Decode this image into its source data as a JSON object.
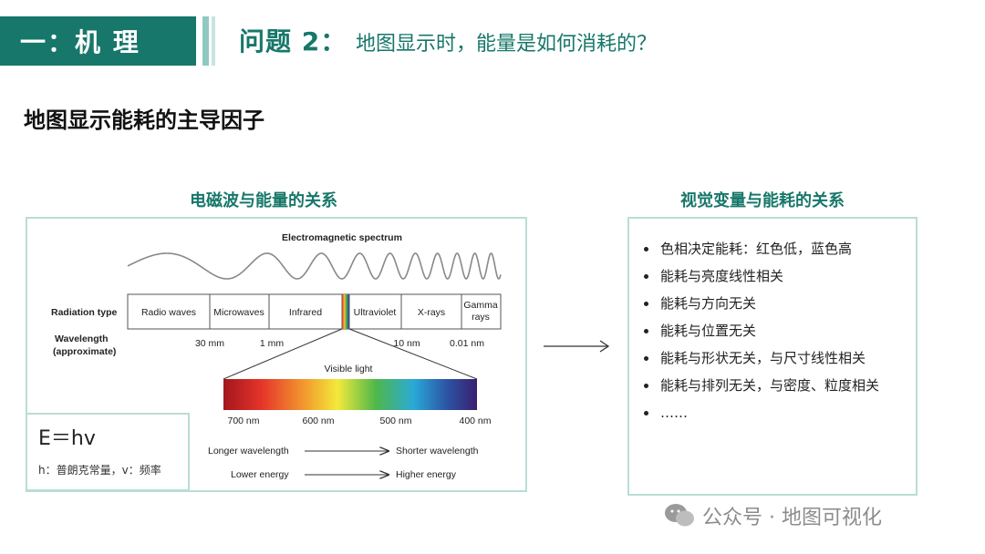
{
  "header": {
    "section_label": "一：机 理",
    "question_number": "问题 2：",
    "question_text": "地图显示时，能量是如何消耗的？"
  },
  "subtitle": "地图显示能耗的主导因子",
  "left_panel": {
    "title": "电磁波与能量的关系",
    "figure": {
      "title": "Electromagnetic spectrum",
      "radiation_type_label": "Radiation type",
      "wavelength_label_line1": "Wavelength",
      "wavelength_label_line2": "(approximate)",
      "bands": [
        "Radio waves",
        "Microwaves",
        "Infrared",
        "Ultraviolet",
        "X-rays",
        "Gamma rays"
      ],
      "wavelength_ticks": [
        "30 mm",
        "1 mm",
        "10 nm",
        "0.01 nm"
      ],
      "visible_light_label": "Visible light",
      "visible_ticks": [
        "700 nm",
        "600 nm",
        "500 nm",
        "400 nm"
      ],
      "arrow_rows": [
        {
          "left": "Longer wavelength",
          "right": "Shorter wavelength"
        },
        {
          "left": "Lower energy",
          "right": "Higher energy"
        }
      ]
    },
    "formula": "E＝hv",
    "formula_note": "h：普朗克常量，v：频率"
  },
  "right_panel": {
    "title": "视觉变量与能耗的关系",
    "items": [
      "色相决定能耗：红色低，蓝色高",
      "能耗与亮度线性相关",
      "能耗与方向无关",
      "能耗与位置无关",
      "能耗与形状无关，与尺寸线性相关",
      "能耗与排列无关，与密度、粒度相关",
      "……"
    ]
  },
  "footer": {
    "watermark": "公众号 · 地图可视化"
  },
  "colors": {
    "accent": "#17776a",
    "panel_border": "#b9ddd6"
  }
}
